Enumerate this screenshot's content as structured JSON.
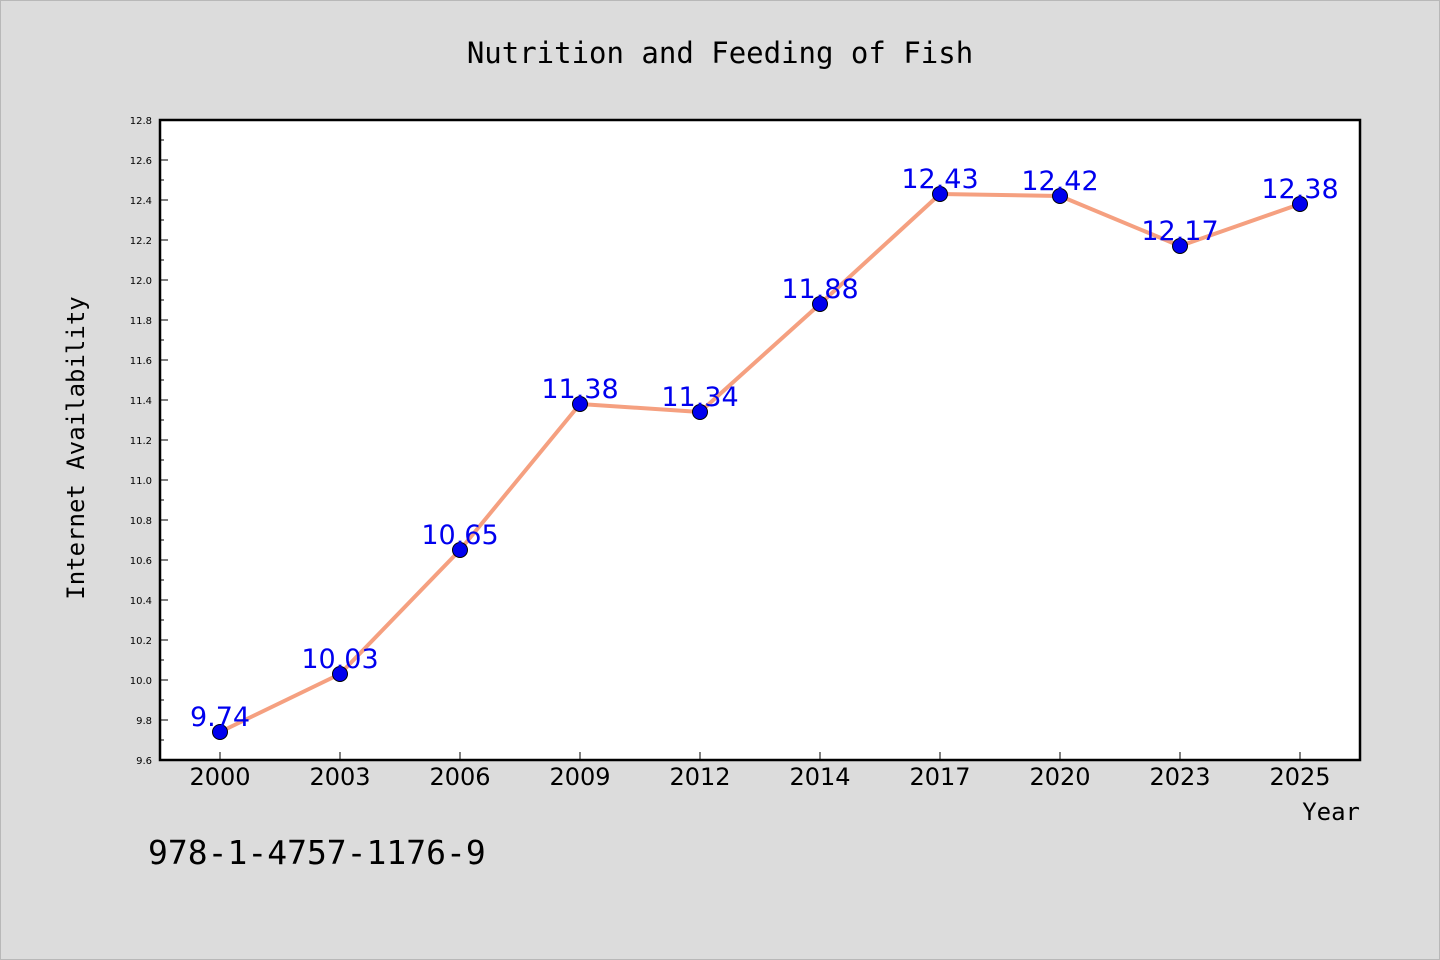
{
  "chart_data": {
    "type": "line",
    "title": "Nutrition and Feeding of Fish",
    "xlabel": "Year",
    "ylabel": "Internet Availability",
    "categories": [
      "2000",
      "2003",
      "2006",
      "2009",
      "2012",
      "2014",
      "2017",
      "2020",
      "2023",
      "2025"
    ],
    "values": [
      9.74,
      10.03,
      10.65,
      11.38,
      11.34,
      11.88,
      12.43,
      12.42,
      12.17,
      12.38
    ],
    "value_labels": [
      "9.74",
      "10.03",
      "10.65",
      "11.38",
      "11.34",
      "11.88",
      "12.43",
      "12.42",
      "12.17",
      "12.38"
    ],
    "ylim": [
      9.6,
      12.8
    ],
    "yticks": [
      "9.6",
      "9.8",
      "10.0",
      "10.2",
      "10.4",
      "10.6",
      "10.8",
      "11.0",
      "11.2",
      "11.4",
      "11.6",
      "11.8",
      "12.0",
      "12.2",
      "12.4",
      "12.6",
      "12.8"
    ],
    "grid": false,
    "line_color": "#f5a080",
    "marker_color": "#0000ee",
    "label_color": "#0000ee"
  },
  "footer": {
    "isbn": "978-1-4757-1176-9"
  }
}
